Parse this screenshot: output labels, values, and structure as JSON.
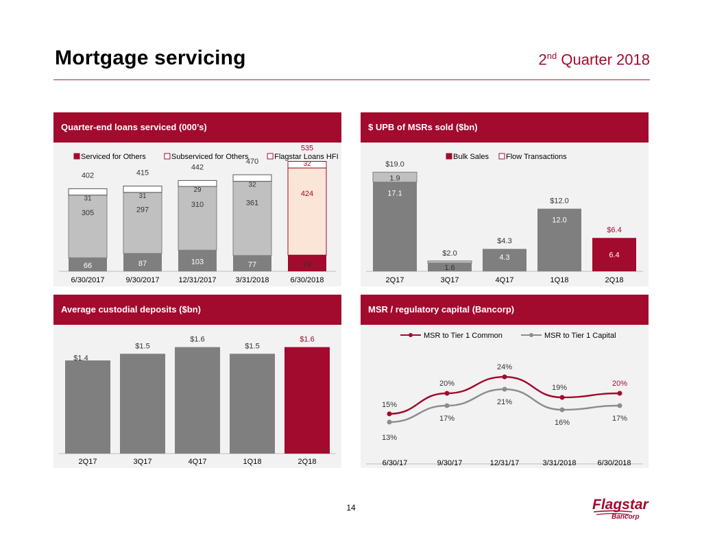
{
  "header": {
    "title": "Mortgage servicing",
    "quarter_num": "2",
    "quarter_sup": "nd",
    "quarter_rest": " Quarter 2018"
  },
  "footer": {
    "page_number": "14",
    "logo_main": "Flagstar",
    "logo_sub": "Bancorp"
  },
  "colors": {
    "brand": "#a20a2e",
    "dark_gray": "#7f7f7f",
    "light_gray": "#c0c0c0",
    "cream": "#fbe5d6",
    "line_gray": "#8c8c8c"
  },
  "chart_data": [
    {
      "id": "loans",
      "type": "bar",
      "title": "Quarter-end loans serviced (000’s)",
      "categories": [
        "6/30/2017",
        "9/30/2017",
        "12/31/2017",
        "3/31/2018",
        "6/30/2018"
      ],
      "series": [
        {
          "name": "Serviced for Others",
          "values": [
            66,
            87,
            103,
            77,
            79
          ]
        },
        {
          "name": "Subserviced for Others",
          "values": [
            305,
            297,
            310,
            361,
            424
          ]
        },
        {
          "name": "Flagstar Loans HFI",
          "values": [
            31,
            31,
            29,
            32,
            32
          ]
        }
      ],
      "totals": [
        402,
        415,
        442,
        470,
        535
      ],
      "highlight_index": 4,
      "ylim": [
        0,
        560
      ]
    },
    {
      "id": "msrs",
      "type": "bar",
      "title": "$ UPB of MSRs sold ($bn)",
      "categories": [
        "2Q17",
        "3Q17",
        "4Q17",
        "1Q18",
        "2Q18"
      ],
      "series": [
        {
          "name": "Bulk Sales",
          "values": [
            17.1,
            1.6,
            4.3,
            12.0,
            6.4
          ],
          "labels": [
            "17.1",
            "1.6",
            "4.3",
            "12.0",
            "6.4"
          ]
        },
        {
          "name": "Flow Transactions",
          "values": [
            1.9,
            0.4,
            0,
            0,
            0
          ],
          "labels": [
            "1.9",
            "",
            "",
            "",
            ""
          ]
        }
      ],
      "totals": [
        "$19.0",
        "$2.0",
        "$4.3",
        "$12.0",
        "$6.4"
      ],
      "highlight_index": 4,
      "ylim": [
        0,
        21
      ]
    },
    {
      "id": "deposits",
      "type": "bar",
      "title": "Average custodial deposits ($bn)",
      "categories": [
        "2Q17",
        "3Q17",
        "4Q17",
        "1Q18",
        "2Q18"
      ],
      "series": [
        {
          "name": "Average custodial deposits",
          "values": [
            1.4,
            1.5,
            1.6,
            1.5,
            1.6
          ]
        }
      ],
      "labels": [
        "$1.4",
        "$1.5",
        "$1.6",
        "$1.5",
        "$1.6"
      ],
      "highlight_index": 4,
      "ylim": [
        0,
        1.75
      ]
    },
    {
      "id": "msrcap",
      "type": "line",
      "title": "MSR / regulatory capital (Bancorp)",
      "categories": [
        "6/30/17",
        "9/30/17",
        "12/31/17",
        "3/31/2018",
        "6/30/2018"
      ],
      "series": [
        {
          "name": "MSR to Tier 1 Common",
          "values": [
            15,
            20,
            24,
            19,
            20
          ],
          "labels": [
            "15%",
            "20%",
            "24%",
            "19%",
            "20%"
          ]
        },
        {
          "name": "MSR to Tier 1 Capital",
          "values": [
            13,
            17,
            21,
            16,
            17
          ],
          "labels": [
            "13%",
            "17%",
            "21%",
            "16%",
            "17%"
          ]
        }
      ],
      "highlight_index": 4,
      "ylim": [
        5,
        30
      ]
    }
  ]
}
